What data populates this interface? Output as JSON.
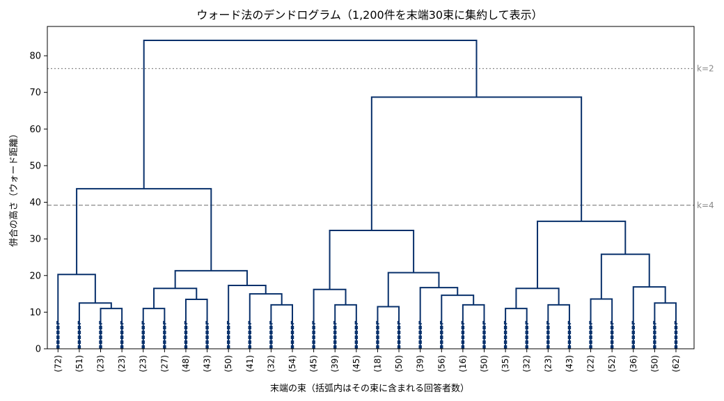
{
  "chart_data": {
    "type": "dendrogram",
    "title": "ウォード法のデンドログラム（1,200件を末端30束に集約して表示）",
    "xlabel": "末端の束（括弧内はその束に含まれる回答者数）",
    "ylabel": "併合の高さ（ウォード距離）",
    "ylim": [
      0,
      88
    ],
    "yticks": [
      0,
      10,
      20,
      30,
      40,
      50,
      60,
      70,
      80
    ],
    "grid": false,
    "leaf_labels": [
      "(72)",
      "(51)",
      "(23)",
      "(23)",
      "(23)",
      "(27)",
      "(48)",
      "(43)",
      "(50)",
      "(41)",
      "(32)",
      "(54)",
      "(45)",
      "(39)",
      "(45)",
      "(18)",
      "(50)",
      "(39)",
      "(56)",
      "(16)",
      "(50)",
      "(35)",
      "(32)",
      "(23)",
      "(43)",
      "(22)",
      "(52)",
      "(36)",
      "(50)",
      "(62)"
    ],
    "leaf_stub_height": 8.5,
    "merges": [
      {
        "left": 2,
        "right": 3,
        "height": 11
      },
      {
        "left": 1,
        "right": 30,
        "height": 12.5
      },
      {
        "left": 0,
        "right": 31,
        "height": 20.3
      },
      {
        "left": 4,
        "right": 5,
        "height": 11
      },
      {
        "left": 6,
        "right": 7,
        "height": 13.5
      },
      {
        "left": 33,
        "right": 34,
        "height": 16.5
      },
      {
        "left": 10,
        "right": 11,
        "height": 12
      },
      {
        "left": 9,
        "right": 36,
        "height": 15
      },
      {
        "left": 8,
        "right": 37,
        "height": 17.3
      },
      {
        "left": 35,
        "right": 38,
        "height": 21.3
      },
      {
        "left": 32,
        "right": 39,
        "height": 43.7
      },
      {
        "left": 13,
        "right": 14,
        "height": 12
      },
      {
        "left": 12,
        "right": 41,
        "height": 16.2
      },
      {
        "left": 15,
        "right": 16,
        "height": 11.5
      },
      {
        "left": 19,
        "right": 20,
        "height": 12
      },
      {
        "left": 18,
        "right": 44,
        "height": 14.6
      },
      {
        "left": 17,
        "right": 45,
        "height": 16.7
      },
      {
        "left": 43,
        "right": 46,
        "height": 20.8
      },
      {
        "left": 42,
        "right": 47,
        "height": 32.3
      },
      {
        "left": 21,
        "right": 22,
        "height": 11
      },
      {
        "left": 23,
        "right": 24,
        "height": 12
      },
      {
        "left": 49,
        "right": 50,
        "height": 16.5
      },
      {
        "left": 25,
        "right": 26,
        "height": 13.6
      },
      {
        "left": 28,
        "right": 29,
        "height": 12.5
      },
      {
        "left": 27,
        "right": 53,
        "height": 16.9
      },
      {
        "left": 52,
        "right": 54,
        "height": 25.8
      },
      {
        "left": 51,
        "right": 55,
        "height": 34.8
      },
      {
        "left": 48,
        "right": 56,
        "height": 68.7
      },
      {
        "left": 40,
        "right": 57,
        "height": 84.2
      }
    ],
    "reference_lines": [
      {
        "label": "k=2",
        "y": 76.5,
        "style": "dotted"
      },
      {
        "label": "k=4",
        "y": 39.2,
        "style": "dashed"
      }
    ],
    "colors": {
      "link": "#08306b",
      "reference": "#888888",
      "axis": "#000000"
    }
  }
}
